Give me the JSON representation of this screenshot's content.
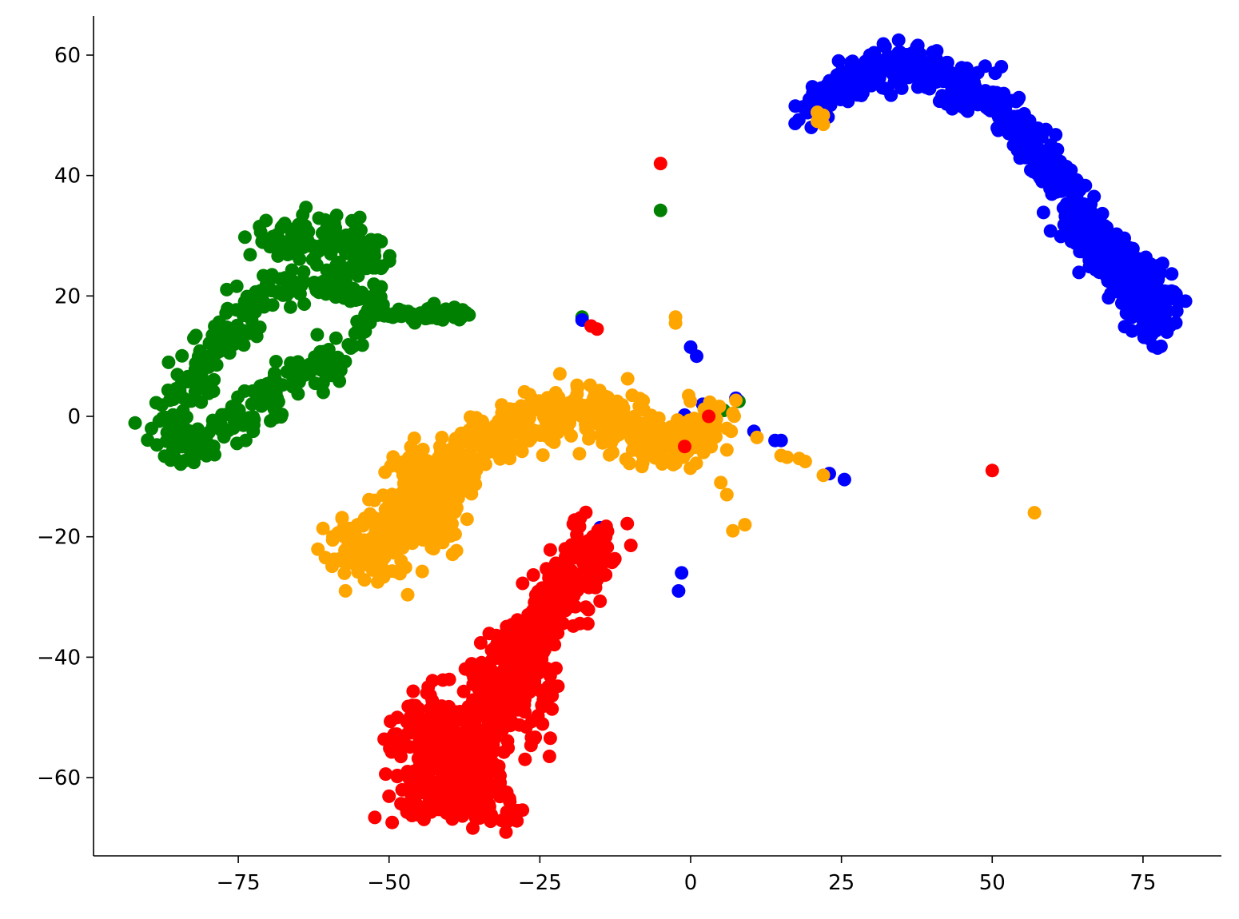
{
  "chart_data": {
    "type": "scatter",
    "title": "",
    "xlabel": "",
    "ylabel": "",
    "xlim": [
      -99,
      88
    ],
    "ylim": [
      -73,
      66.5
    ],
    "xticks": [
      -75,
      -50,
      -25,
      0,
      25,
      50,
      75
    ],
    "yticks": [
      -60,
      -40,
      -20,
      0,
      20,
      40,
      60
    ],
    "xtick_labels": [
      "−75",
      "−50",
      "−25",
      "0",
      "25",
      "50",
      "75"
    ],
    "ytick_labels": [
      "−60",
      "−40",
      "−20",
      "0",
      "20",
      "40",
      "60"
    ],
    "grid": false,
    "legend": "none",
    "spines": [
      "left",
      "bottom"
    ],
    "series": [
      {
        "color": "#008000",
        "clusters": [
          {
            "path": [
              [
                -62,
                28
              ],
              [
                -68,
                29
              ],
              [
                -72,
                30
              ],
              [
                -60,
                31
              ],
              [
                -56,
                28
              ],
              [
                -52,
                26
              ],
              [
                -58,
                24
              ],
              [
                -64,
                22
              ],
              [
                -70,
                20
              ],
              [
                -74,
                17
              ],
              [
                -77,
                14
              ],
              [
                -80,
                10
              ],
              [
                -83,
                5
              ],
              [
                -86,
                1
              ],
              [
                -87,
                -3
              ],
              [
                -85,
                -6
              ],
              [
                -82,
                -5
              ],
              [
                -78,
                -3
              ],
              [
                -74,
                0
              ],
              [
                -70,
                3
              ],
              [
                -66,
                6
              ],
              [
                -62,
                9
              ],
              [
                -58,
                10
              ]
            ],
            "count": 480,
            "spread": 1.8
          },
          {
            "path": [
              [
                -60,
                22
              ],
              [
                -55,
                20
              ],
              [
                -52,
                18
              ],
              [
                -48,
                17
              ],
              [
                -44,
                17
              ],
              [
                -40,
                17
              ],
              [
                -37,
                16
              ]
            ],
            "count": 90,
            "spread": 0.7
          },
          {
            "path": [
              [
                -52,
                22
              ],
              [
                -55,
                12
              ]
            ],
            "count": 25,
            "spread": 0.8
          }
        ],
        "outliers": [
          [
            -18,
            16.5
          ],
          [
            -5,
            34.2
          ],
          [
            8,
            2.5
          ],
          [
            5.5,
            1
          ]
        ]
      },
      {
        "color": "#0000ff",
        "clusters": [
          {
            "path": [
              [
                19,
                51
              ],
              [
                22,
                52
              ],
              [
                25,
                55
              ],
              [
                28,
                57
              ],
              [
                32,
                59
              ],
              [
                36,
                58
              ],
              [
                40,
                58
              ],
              [
                44,
                56
              ],
              [
                48,
                53
              ],
              [
                52,
                50
              ],
              [
                56,
                46
              ],
              [
                60,
                41
              ],
              [
                63,
                36
              ],
              [
                66,
                31
              ],
              [
                69,
                27
              ],
              [
                72,
                23
              ],
              [
                75,
                20
              ],
              [
                76,
                16
              ],
              [
                76,
                13
              ]
            ],
            "count": 700,
            "spread": 1.6
          },
          {
            "path": [
              [
                63,
                30
              ],
              [
                70,
                26
              ],
              [
                76,
                22
              ],
              [
                78,
                18
              ],
              [
                79,
                21
              ]
            ],
            "count": 160,
            "spread": 1.8
          }
        ],
        "outliers": [
          [
            -18,
            16
          ],
          [
            0,
            11.5
          ],
          [
            1,
            10
          ],
          [
            -1,
            0.2
          ],
          [
            2,
            2
          ],
          [
            4,
            1
          ],
          [
            7.5,
            3
          ],
          [
            10.5,
            -2.5
          ],
          [
            14,
            -4
          ],
          [
            15,
            -4
          ],
          [
            23,
            -9.5
          ],
          [
            25.5,
            -10.5
          ],
          [
            -15,
            -18.5
          ],
          [
            -16,
            -20
          ],
          [
            -17,
            -22.5
          ],
          [
            -21.5,
            -32
          ],
          [
            -1.5,
            -26
          ],
          [
            -2,
            -29
          ],
          [
            50.5,
            57
          ],
          [
            35,
            54.5
          ],
          [
            20,
            48
          ]
        ]
      },
      {
        "color": "#ffa500",
        "clusters": [
          {
            "path": [
              [
                -55,
                -22
              ],
              [
                -50,
                -20
              ],
              [
                -46,
                -15
              ],
              [
                -42,
                -10
              ],
              [
                -38,
                -7
              ],
              [
                -34,
                -4
              ],
              [
                -30,
                -2
              ],
              [
                -26,
                0
              ],
              [
                -22,
                1
              ],
              [
                -18,
                1.5
              ],
              [
                -14,
                0
              ],
              [
                -10,
                -2
              ],
              [
                -6,
                -4
              ],
              [
                -3,
                -5
              ],
              [
                0,
                -4
              ],
              [
                2,
                -2
              ],
              [
                4,
                0
              ]
            ],
            "count": 620,
            "spread": 2.2
          },
          {
            "path": [
              [
                -58,
                -20
              ],
              [
                -52,
                -24
              ],
              [
                -48,
                -20
              ],
              [
                -45,
                -14
              ],
              [
                -42,
                -18
              ],
              [
                -46,
                -8
              ],
              [
                -40,
                -12
              ]
            ],
            "count": 380,
            "spread": 2.6
          }
        ],
        "outliers": [
          [
            -2.5,
            16.5
          ],
          [
            -2.5,
            15.5
          ],
          [
            7,
            0.5
          ],
          [
            6,
            -2
          ],
          [
            11,
            -3.5
          ],
          [
            15,
            -6.5
          ],
          [
            16,
            -6.8
          ],
          [
            18,
            -7
          ],
          [
            19,
            -7.5
          ],
          [
            22,
            -9.8
          ],
          [
            5,
            -11
          ],
          [
            6,
            -13
          ],
          [
            7,
            -19
          ],
          [
            9,
            -18
          ],
          [
            57,
            -16
          ],
          [
            21,
            49
          ],
          [
            22,
            50
          ],
          [
            21,
            50.5
          ],
          [
            22,
            48.5
          ]
        ]
      },
      {
        "color": "#ff0000",
        "clusters": [
          {
            "path": [
              [
                -15,
                -19
              ],
              [
                -18,
                -25
              ],
              [
                -22,
                -30
              ],
              [
                -26,
                -36
              ],
              [
                -30,
                -42
              ],
              [
                -32,
                -48
              ],
              [
                -34,
                -53
              ],
              [
                -36,
                -58
              ],
              [
                -38,
                -62
              ],
              [
                -34,
                -64
              ],
              [
                -31,
                -66
              ]
            ],
            "count": 520,
            "spread": 2.2
          },
          {
            "path": [
              [
                -48,
                -56
              ],
              [
                -45,
                -50
              ],
              [
                -42,
                -48
              ],
              [
                -40,
                -55
              ],
              [
                -44,
                -60
              ],
              [
                -47,
                -64
              ],
              [
                -42,
                -64
              ],
              [
                -38,
                -50
              ],
              [
                -30,
                -38
              ],
              [
                -26,
                -46
              ],
              [
                -28,
                -55
              ]
            ],
            "count": 380,
            "spread": 2.4
          }
        ],
        "outliers": [
          [
            -5,
            42
          ],
          [
            -16.5,
            15
          ],
          [
            -15.5,
            14.5
          ],
          [
            50,
            -9
          ],
          [
            -1,
            -5
          ],
          [
            3,
            0
          ]
        ]
      }
    ]
  }
}
